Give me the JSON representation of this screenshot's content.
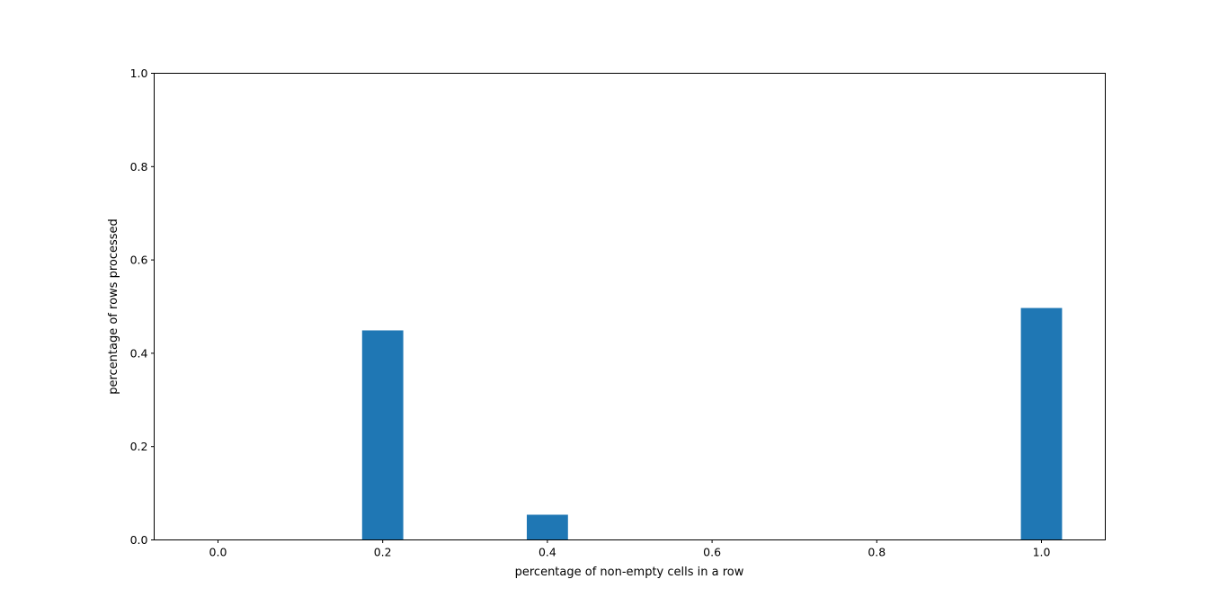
{
  "chart_data": {
    "type": "bar",
    "title": "",
    "xlabel": "percentage of non-empty cells in a row",
    "ylabel": "percentage of rows processed",
    "x": [
      0.0,
      0.2,
      0.4,
      0.6,
      0.8,
      1.0
    ],
    "values": [
      0.0,
      0.449,
      0.054,
      0.0,
      0.0,
      0.497
    ],
    "bar_width": 0.05,
    "xlim": [
      -0.0775,
      1.0775
    ],
    "ylim": [
      0.0,
      1.0
    ],
    "xticks": [
      "0.0",
      "0.2",
      "0.4",
      "0.6",
      "0.8",
      "1.0"
    ],
    "yticks": [
      "0.0",
      "0.2",
      "0.4",
      "0.6",
      "0.8",
      "1.0"
    ],
    "grid": false,
    "bar_color": "#1f77b4"
  }
}
